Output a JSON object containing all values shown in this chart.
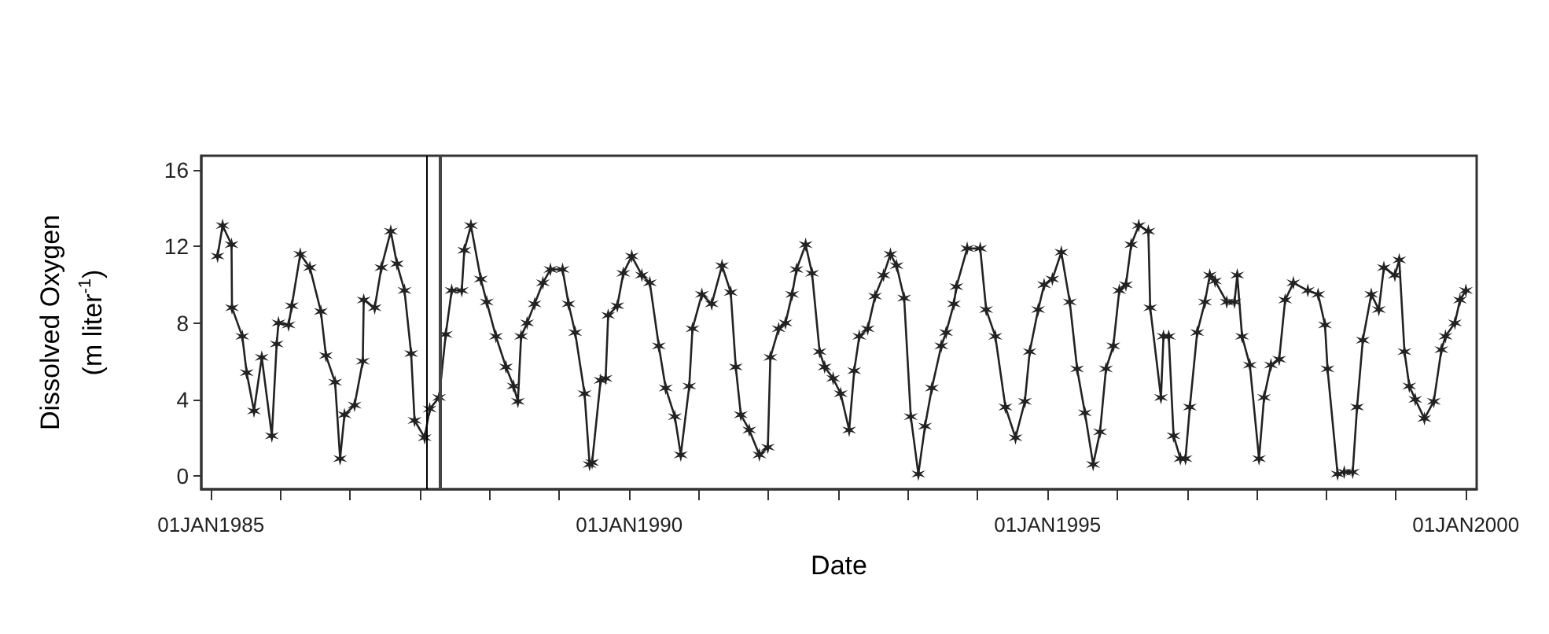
{
  "chart_data": {
    "type": "line",
    "xlabel": "Date",
    "ylabel": "Dissolved Oxygen (m liter$^{-1}$)",
    "x": [
      "1985-01-30",
      "1985-02-21",
      "1985-04-01",
      "1985-04-03",
      "1985-05-18",
      "1985-06-06",
      "1985-07-08",
      "1985-08-11",
      "1985-09-24",
      "1985-10-15",
      "1985-10-23",
      "1985-12-06",
      "1985-12-20",
      "1986-01-26",
      "1986-03-09",
      "1986-04-26",
      "1986-05-18",
      "1986-06-27",
      "1986-07-19",
      "1986-08-07",
      "1986-09-20",
      "1986-10-26",
      "1986-10-30",
      "1986-12-17",
      "1987-01-15",
      "1987-02-25",
      "1987-03-24",
      "1987-04-26",
      "1987-05-25",
      "1987-06-09",
      "1987-07-23",
      "1987-08-14",
      "1987-09-24",
      "1987-10-23",
      "1987-11-18",
      "1988-01-01",
      "1988-01-12",
      "1988-02-10",
      "1988-03-24",
      "1988-04-19",
      "1988-05-29",
      "1988-07-12",
      "1988-08-14",
      "1988-09-02",
      "1988-09-16",
      "1988-10-12",
      "1988-11-14",
      "1988-12-20",
      "1989-01-22",
      "1989-03-16",
      "1989-04-11",
      "1989-05-10",
      "1989-06-20",
      "1989-07-12",
      "1989-07-23",
      "1989-08-29",
      "1989-09-20",
      "1989-10-01",
      "1989-11-10",
      "1989-12-06",
      "1990-01-12",
      "1990-02-25",
      "1990-04-01",
      "1990-05-10",
      "1990-06-09",
      "1990-07-19",
      "1990-08-14",
      "1990-09-20",
      "1990-10-04",
      "1990-11-14",
      "1990-12-27",
      "1991-02-10",
      "1991-03-20",
      "1991-04-11",
      "1991-05-03",
      "1991-06-09",
      "1991-07-23",
      "1991-08-29",
      "1991-09-09",
      "1991-10-15",
      "1991-11-14",
      "1991-12-13",
      "1992-01-01",
      "1992-02-10",
      "1992-03-09",
      "1992-04-11",
      "1992-05-03",
      "1992-06-09",
      "1992-07-12",
      "1992-08-18",
      "1992-09-09",
      "1992-10-01",
      "1992-11-07",
      "1992-12-09",
      "1993-01-15",
      "1993-02-14",
      "1993-03-13",
      "1993-04-15",
      "1993-05-14",
      "1993-06-16",
      "1993-07-15",
      "1993-08-14",
      "1993-09-24",
      "1993-10-15",
      "1993-11-18",
      "1993-11-29",
      "1994-01-15",
      "1994-03-13",
      "1994-04-08",
      "1994-05-18",
      "1994-07-01",
      "1994-08-14",
      "1994-09-24",
      "1994-10-15",
      "1994-11-21",
      "1994-12-17",
      "1995-01-22",
      "1995-03-02",
      "1995-04-08",
      "1995-05-10",
      "1995-06-13",
      "1995-07-19",
      "1995-08-18",
      "1995-09-13",
      "1995-10-15",
      "1995-11-10",
      "1995-12-09",
      "1996-01-01",
      "1996-02-03",
      "1996-03-16",
      "1996-03-24",
      "1996-05-10",
      "1996-05-21",
      "1996-06-13",
      "1996-07-04",
      "1996-08-03",
      "1996-08-25",
      "1996-09-13",
      "1996-10-15",
      "1996-11-18",
      "1996-12-09",
      "1997-01-01",
      "1997-02-21",
      "1997-03-27",
      "1997-04-08",
      "1997-04-29",
      "1997-06-02",
      "1997-07-12",
      "1997-08-03",
      "1997-09-02",
      "1997-10-08",
      "1997-11-03",
      "1997-12-09",
      "1998-02-10",
      "1998-03-27",
      "1998-04-26",
      "1998-05-07",
      "1998-06-20",
      "1998-07-19",
      "1998-08-25",
      "1998-09-13",
      "1998-10-08",
      "1998-11-14",
      "1998-12-17",
      "1999-01-08",
      "1999-02-25",
      "1999-03-16",
      "1999-04-08",
      "1999-04-29",
      "1999-05-25",
      "1999-07-04",
      "1999-08-14",
      "1999-09-16",
      "1999-10-04",
      "1999-11-14",
      "1999-12-06",
      "2000-01-01"
    ],
    "series": [
      {
        "color": "#222222",
        "values": [
          11.5,
          13.1,
          12.1,
          8.8,
          7.3,
          5.4,
          3.4,
          6.2,
          2.1,
          6.9,
          8.0,
          7.9,
          8.9,
          11.6,
          10.9,
          8.6,
          6.3,
          4.9,
          0.9,
          3.2,
          3.7,
          6.0,
          9.2,
          8.8,
          10.9,
          12.8,
          11.1,
          9.7,
          6.4,
          2.9,
          2.0,
          3.5,
          4.1,
          7.4,
          9.7,
          9.7,
          11.8,
          13.1,
          10.3,
          9.1,
          7.3,
          5.7,
          4.7,
          3.9,
          7.3,
          8.0,
          9.0,
          10.1,
          10.8,
          10.8,
          9.0,
          7.5,
          4.3,
          0.6,
          0.7,
          5.0,
          5.1,
          8.4,
          8.9,
          10.6,
          11.5,
          10.5,
          10.1,
          6.8,
          4.6,
          3.1,
          1.1,
          4.7,
          7.7,
          9.5,
          9.0,
          11.0,
          9.6,
          5.7,
          3.2,
          2.4,
          1.1,
          1.5,
          6.2,
          7.7,
          8.0,
          9.5,
          10.8,
          12.1,
          10.6,
          6.5,
          5.7,
          5.1,
          4.3,
          2.4,
          5.5,
          7.3,
          7.7,
          9.4,
          10.5,
          11.6,
          11.0,
          9.3,
          3.1,
          0.1,
          2.6,
          4.6,
          6.8,
          7.5,
          9.0,
          9.9,
          11.9,
          11.9,
          8.7,
          7.3,
          3.6,
          2.0,
          3.9,
          6.5,
          8.7,
          10.0,
          10.3,
          11.7,
          9.1,
          5.6,
          3.3,
          0.6,
          2.3,
          5.6,
          6.8,
          9.7,
          10.0,
          12.1,
          13.1,
          12.8,
          8.8,
          4.1,
          7.3,
          7.3,
          2.1,
          0.9,
          0.9,
          3.6,
          7.5,
          9.1,
          10.5,
          10.2,
          9.1,
          9.1,
          10.5,
          7.3,
          5.8,
          0.9,
          4.1,
          5.8,
          6.1,
          9.2,
          10.1,
          9.7,
          9.5,
          7.9,
          5.6,
          0.1,
          0.2,
          0.2,
          3.6,
          7.1,
          9.5,
          8.7,
          10.9,
          10.5,
          11.3,
          6.5,
          4.7,
          4.0,
          3.0,
          3.9,
          6.6,
          7.3,
          8.0,
          9.2,
          9.7
        ]
      }
    ],
    "xlim": [
      "1984-11-20",
      "2000-02-17"
    ],
    "xticks": [
      {
        "value": "1985-01-01",
        "label": "01JAN1985"
      },
      {
        "value": "1985-11-01",
        "label": null
      },
      {
        "value": "1986-09-01",
        "label": null
      },
      {
        "value": "1987-07-01",
        "label": null
      },
      {
        "value": "1988-05-01",
        "label": null
      },
      {
        "value": "1989-03-01",
        "label": null
      },
      {
        "value": "1990-01-01",
        "label": "01JAN1990"
      },
      {
        "value": "1990-11-01",
        "label": null
      },
      {
        "value": "1991-09-01",
        "label": null
      },
      {
        "value": "1992-07-01",
        "label": null
      },
      {
        "value": "1993-05-01",
        "label": null
      },
      {
        "value": "1994-03-01",
        "label": null
      },
      {
        "value": "1995-01-01",
        "label": "01JAN1995"
      },
      {
        "value": "1995-11-01",
        "label": null
      },
      {
        "value": "1996-09-01",
        "label": null
      },
      {
        "value": "1997-07-01",
        "label": null
      },
      {
        "value": "1998-05-01",
        "label": null
      },
      {
        "value": "1999-03-01",
        "label": null
      },
      {
        "value": "2000-01-01",
        "label": "01JAN2000"
      }
    ],
    "ylim": [
      -0.7,
      16.75
    ],
    "yticks": [
      0,
      4,
      8,
      12,
      16
    ],
    "ref_lines": [
      {
        "axis": "x",
        "value": "1987-08-01",
        "color": "#000000"
      },
      {
        "axis": "x",
        "value": "1987-10-01",
        "color": "#444444"
      }
    ],
    "marker": "cross",
    "line_style": "solid",
    "grid": false
  }
}
